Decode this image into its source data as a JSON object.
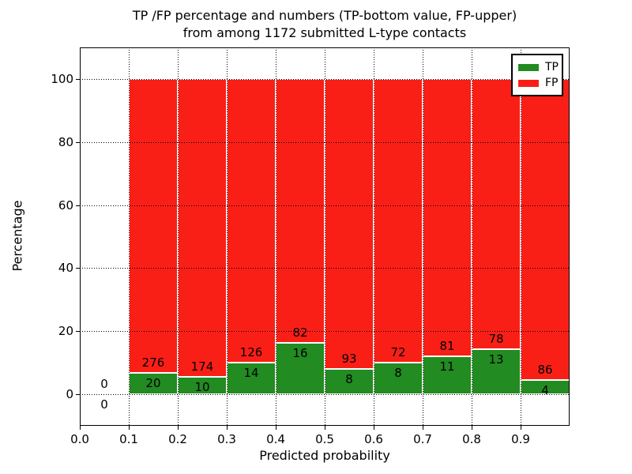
{
  "chart_data": {
    "type": "bar",
    "stacked": true,
    "title_line1": "TP /FP percentage and numbers (TP-bottom value, FP-upper)",
    "title_line2": "from among 1172 submitted L-type contacts",
    "total_submitted_contacts": 1172,
    "xlabel": "Predicted probability",
    "ylabel": "Percentage",
    "xlim": [
      0.0,
      1.0
    ],
    "ylim": [
      -10,
      110
    ],
    "x_ticks": [
      {
        "value": 0.0,
        "label": "0.0"
      },
      {
        "value": 0.1,
        "label": "0.1"
      },
      {
        "value": 0.2,
        "label": "0.2"
      },
      {
        "value": 0.3,
        "label": "0.3"
      },
      {
        "value": 0.4,
        "label": "0.4"
      },
      {
        "value": 0.5,
        "label": "0.5"
      },
      {
        "value": 0.6,
        "label": "0.6"
      },
      {
        "value": 0.7,
        "label": "0.7"
      },
      {
        "value": 0.8,
        "label": "0.8"
      },
      {
        "value": 0.9,
        "label": "0.9"
      }
    ],
    "y_ticks": [
      {
        "value": 0,
        "label": "0"
      },
      {
        "value": 20,
        "label": "20"
      },
      {
        "value": 40,
        "label": "40"
      },
      {
        "value": 60,
        "label": "60"
      },
      {
        "value": 80,
        "label": "80"
      },
      {
        "value": 100,
        "label": "100"
      }
    ],
    "grid": "dotted",
    "legend": {
      "position": "upper-right",
      "entries": [
        {
          "label": "TP",
          "color": "#228b22"
        },
        {
          "label": "FP",
          "color": "#f91f17"
        }
      ]
    },
    "colors": {
      "tp": "#228b22",
      "fp": "#f91f17",
      "bar_edge": "#ffffff",
      "grid": "#000000"
    },
    "bins": [
      {
        "range": [
          0.0,
          0.1
        ],
        "tp": 0,
        "fp": 0,
        "bar": false
      },
      {
        "range": [
          0.1,
          0.2
        ],
        "tp": 20,
        "fp": 276,
        "bar": true
      },
      {
        "range": [
          0.2,
          0.3
        ],
        "tp": 10,
        "fp": 174,
        "bar": true
      },
      {
        "range": [
          0.3,
          0.4
        ],
        "tp": 14,
        "fp": 126,
        "bar": true
      },
      {
        "range": [
          0.4,
          0.5
        ],
        "tp": 16,
        "fp": 82,
        "bar": true
      },
      {
        "range": [
          0.5,
          0.6
        ],
        "tp": 8,
        "fp": 93,
        "bar": true
      },
      {
        "range": [
          0.6,
          0.7
        ],
        "tp": 8,
        "fp": 72,
        "bar": true
      },
      {
        "range": [
          0.7,
          0.8
        ],
        "tp": 11,
        "fp": 81,
        "bar": true
      },
      {
        "range": [
          0.8,
          0.9
        ],
        "tp": 13,
        "fp": 78,
        "bar": true
      },
      {
        "range": [
          0.9,
          1.0
        ],
        "tp": 4,
        "fp": 86,
        "bar": true
      }
    ]
  }
}
